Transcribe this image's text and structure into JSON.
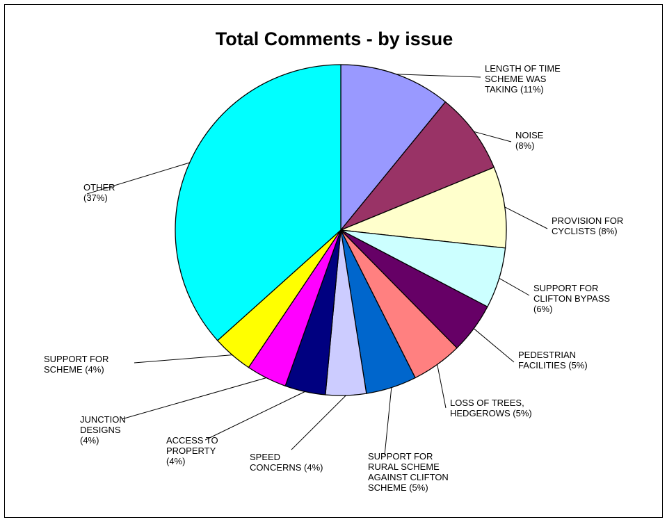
{
  "chart_data": {
    "type": "pie",
    "title": "Total Comments - by issue",
    "slices": [
      {
        "label_lines": [
          "LENGTH OF TIME",
          "SCHEME WAS",
          "TAKING (11%)"
        ],
        "value": 11,
        "color": "#9999FF"
      },
      {
        "label_lines": [
          "NOISE",
          "(8%)"
        ],
        "value": 8,
        "color": "#993366"
      },
      {
        "label_lines": [
          "PROVISION FOR",
          "CYCLISTS (8%)"
        ],
        "value": 8,
        "color": "#FFFFCC"
      },
      {
        "label_lines": [
          "SUPPORT FOR",
          "CLIFTON BYPASS",
          "(6%)"
        ],
        "value": 6,
        "color": "#CCFFFF"
      },
      {
        "label_lines": [
          "PEDESTRIAN",
          "FACILITIES (5%)"
        ],
        "value": 5,
        "color": "#660066"
      },
      {
        "label_lines": [
          "LOSS OF TREES,",
          "HEDGEROWS (5%)"
        ],
        "value": 5,
        "color": "#FF8080"
      },
      {
        "label_lines": [
          "SUPPORT FOR",
          "RURAL SCHEME",
          "AGAINST CLIFTON",
          "SCHEME (5%)"
        ],
        "value": 5,
        "color": "#0066CC"
      },
      {
        "label_lines": [
          "SPEED",
          "CONCERNS (4%)"
        ],
        "value": 4,
        "color": "#CCCCFF"
      },
      {
        "label_lines": [
          "ACCESS TO",
          "PROPERTY",
          "(4%)"
        ],
        "value": 4,
        "color": "#000080"
      },
      {
        "label_lines": [
          "JUNCTION",
          "DESIGNS",
          "(4%)"
        ],
        "value": 4,
        "color": "#FF00FF"
      },
      {
        "label_lines": [
          "SUPPORT FOR",
          "SCHEME (4%)"
        ],
        "value": 4,
        "color": "#FFFF00"
      },
      {
        "label_lines": [
          "OTHER",
          "(37%)"
        ],
        "value": 37,
        "color": "#00FFFF"
      }
    ]
  }
}
